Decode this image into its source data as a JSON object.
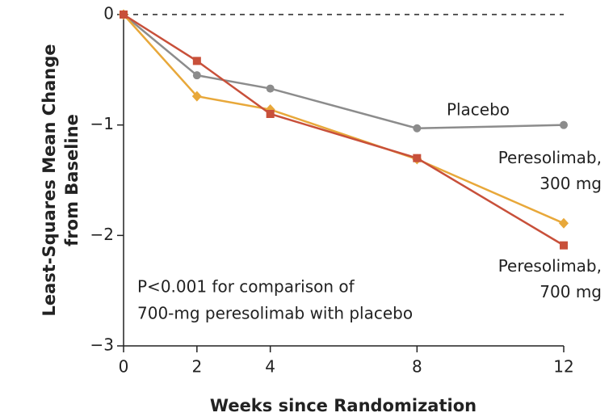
{
  "chart_data": {
    "type": "line",
    "xlabel": "Weeks since Randomization",
    "ylabel": [
      "Least-Squares Mean Change",
      "from Baseline"
    ],
    "x": [
      0,
      2,
      4,
      8,
      12
    ],
    "xlim": [
      0,
      12
    ],
    "xticks": [
      0,
      2,
      4,
      8,
      12
    ],
    "ylim": [
      -3,
      0
    ],
    "yticks": [
      0,
      {
        "value": -1,
        "label": "−1"
      },
      {
        "value": -2,
        "label": "−2"
      },
      {
        "value": -3,
        "label": "−3"
      }
    ],
    "reference_line_y": 0,
    "series": [
      {
        "name": "Placebo",
        "color": "#8c8c8c",
        "marker": "circle",
        "values": [
          0,
          -0.55,
          -0.67,
          -1.03,
          -1.0
        ]
      },
      {
        "name": "Peresolimab, 300 mg",
        "color": "#e8a83a",
        "marker": "diamond",
        "values": [
          0,
          -0.74,
          -0.86,
          -1.31,
          -1.89
        ]
      },
      {
        "name": "Peresolimab, 700 mg",
        "color": "#c8503a",
        "marker": "square",
        "values": [
          0,
          -0.42,
          -0.9,
          -1.3,
          -2.09
        ]
      }
    ],
    "annotation": [
      "P<0.001 for comparison of",
      "700-mg peresolimab with placebo"
    ]
  }
}
